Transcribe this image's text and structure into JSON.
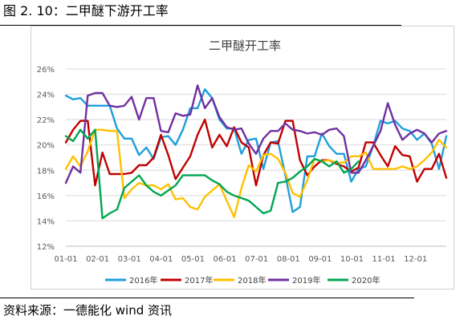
{
  "figure_title": "图 2. 10：二甲醚下游开工率",
  "source_note": "资料来源：一德能化  wind 资讯",
  "chart_data": {
    "type": "line",
    "title": "二甲醚开工率",
    "xlabel": "",
    "ylabel": "",
    "x_ticks": [
      "01-01",
      "02-01",
      "03-01",
      "04-01",
      "05-01",
      "06-01",
      "07-01",
      "08-01",
      "09-01",
      "10-01",
      "11-01",
      "12-01"
    ],
    "y_ticks": [
      "26%",
      "24%",
      "22%",
      "20%",
      "18%",
      "16%",
      "14%",
      "12%"
    ],
    "ylim": [
      12,
      26
    ],
    "x_unit": "week",
    "xlim": [
      1,
      53
    ],
    "grid": "horizontal",
    "legend_position": "bottom",
    "series": [
      {
        "name": "2016年",
        "color": "#1f9fdb",
        "x": [
          1,
          2,
          3,
          4,
          5,
          6,
          7,
          8,
          9,
          10,
          11,
          12,
          13,
          14,
          15,
          16,
          17,
          18,
          19,
          20,
          21,
          22,
          23,
          24,
          25,
          26,
          27,
          28,
          29,
          30,
          31,
          32,
          33,
          34,
          35,
          36,
          37,
          38,
          39,
          40,
          41,
          42,
          43,
          44,
          45,
          46,
          47,
          48,
          49,
          50,
          51,
          52,
          53
        ],
        "values": [
          23.9,
          23.6,
          23.7,
          23.1,
          23.1,
          23.1,
          23.1,
          21.3,
          20.5,
          20.5,
          19.2,
          19.8,
          18.9,
          20.6,
          20.7,
          20.0,
          21.2,
          22.9,
          22.9,
          24.4,
          23.7,
          22.0,
          21.3,
          21.3,
          19.3,
          20.4,
          20.5,
          18.1,
          20.2,
          20.3,
          17.6,
          14.7,
          15.1,
          19.1,
          19.1,
          20.9,
          19.9,
          19.3,
          19.3,
          17.1,
          18.1,
          18.3,
          19.9,
          21.9,
          21.7,
          21.9,
          21.3,
          21.1,
          20.4,
          20.9,
          20.1,
          18.1,
          20.7
        ]
      },
      {
        "name": "2017年",
        "color": "#c00000",
        "x": [
          1,
          2,
          3,
          4,
          5,
          6,
          7,
          8,
          9,
          10,
          11,
          12,
          13,
          14,
          15,
          16,
          17,
          18,
          19,
          20,
          21,
          22,
          23,
          24,
          25,
          26,
          27,
          28,
          29,
          30,
          31,
          32,
          33,
          34,
          35,
          36,
          37,
          38,
          39,
          40,
          41,
          42,
          43,
          44,
          45,
          46,
          47,
          48,
          49,
          50,
          51,
          52,
          53
        ],
        "values": [
          20.2,
          21.2,
          21.9,
          21.9,
          16.8,
          19.4,
          17.7,
          17.7,
          17.7,
          17.8,
          18.4,
          18.4,
          19.0,
          20.8,
          19.2,
          17.3,
          18.2,
          19.1,
          20.8,
          22.0,
          19.8,
          20.8,
          19.9,
          21.4,
          20.2,
          19.8,
          16.8,
          19.2,
          20.2,
          20.1,
          21.9,
          21.9,
          18.8,
          17.6,
          18.3,
          18.8,
          18.8,
          18.5,
          18.3,
          17.9,
          18.2,
          20.2,
          20.2,
          19.2,
          18.3,
          19.9,
          19.2,
          19.1,
          17.1,
          18.1,
          18.1,
          19.3,
          17.4
        ]
      },
      {
        "name": "2018年",
        "color": "#ffc000",
        "x": [
          1,
          2,
          3,
          4,
          5,
          6,
          7,
          8,
          9,
          10,
          11,
          12,
          13,
          14,
          15,
          16,
          17,
          18,
          19,
          20,
          21,
          22,
          23,
          24,
          25,
          26,
          27,
          28,
          29,
          30,
          31,
          32,
          33,
          34,
          35,
          36,
          37,
          38,
          39,
          40,
          41,
          42,
          43,
          44,
          45,
          46,
          47,
          48,
          49,
          50,
          51,
          52,
          53
        ],
        "values": [
          18.1,
          19.1,
          18.3,
          19.5,
          21.2,
          21.2,
          21.1,
          21.1,
          15.8,
          16.5,
          17.0,
          16.8,
          16.8,
          16.5,
          16.9,
          15.7,
          15.8,
          15.1,
          14.9,
          15.9,
          16.4,
          16.9,
          15.6,
          14.3,
          16.6,
          18.4,
          17.9,
          19.2,
          19.3,
          18.9,
          17.8,
          16.2,
          15.9,
          17.2,
          18.9,
          18.7,
          18.8,
          18.6,
          18.6,
          19.1,
          19.1,
          19.4,
          18.1,
          18.1,
          18.1,
          18.1,
          18.3,
          18.1,
          18.3,
          18.8,
          19.4,
          20.4,
          19.8
        ]
      },
      {
        "name": "2019年",
        "color": "#7030a0",
        "x": [
          1,
          2,
          3,
          4,
          5,
          6,
          7,
          8,
          9,
          10,
          11,
          12,
          13,
          14,
          15,
          16,
          17,
          18,
          19,
          20,
          21,
          22,
          23,
          24,
          25,
          26,
          27,
          28,
          29,
          30,
          31,
          32,
          33,
          34,
          35,
          36,
          37,
          38,
          39,
          40,
          41,
          42,
          43,
          44,
          45,
          46,
          47,
          48,
          49,
          50,
          51,
          52,
          53
        ],
        "values": [
          17.0,
          18.3,
          17.8,
          23.9,
          24.1,
          24.1,
          23.1,
          23.0,
          23.1,
          23.8,
          22.0,
          23.7,
          23.7,
          21.1,
          21.0,
          22.5,
          22.3,
          22.4,
          24.7,
          22.9,
          23.7,
          22.2,
          21.4,
          21.2,
          21.3,
          20.1,
          19.3,
          20.5,
          21.1,
          21.1,
          21.7,
          21.2,
          21.1,
          20.9,
          21.0,
          20.8,
          21.2,
          21.3,
          20.7,
          17.8,
          17.8,
          18.8,
          19.9,
          21.1,
          23.3,
          21.6,
          20.4,
          20.9,
          21.2,
          20.9,
          20.2,
          20.9,
          21.1
        ]
      },
      {
        "name": "2020年",
        "color": "#00a651",
        "x": [
          1,
          2,
          3,
          4,
          5,
          6,
          7,
          8,
          9,
          10,
          11,
          12,
          13,
          14,
          15,
          16,
          17,
          18,
          19,
          20,
          21,
          22,
          23,
          24,
          25,
          26,
          27,
          28,
          29,
          30,
          31,
          32,
          33,
          34,
          35,
          36,
          37,
          38,
          39,
          40,
          41
        ],
        "values": [
          20.7,
          20.3,
          21.2,
          20.5,
          21.2,
          14.2,
          14.6,
          14.9,
          16.6,
          17.1,
          17.6,
          16.8,
          16.3,
          16.0,
          16.4,
          16.8,
          17.6,
          17.6,
          17.6,
          17.6,
          17.2,
          16.9,
          16.3,
          16.0,
          15.8,
          15.6,
          15.1,
          14.6,
          14.8,
          17.0,
          17.1,
          17.4,
          17.9,
          18.3,
          18.9,
          18.7,
          18.3,
          18.7,
          17.8,
          18.1,
          18.7
        ]
      }
    ]
  }
}
